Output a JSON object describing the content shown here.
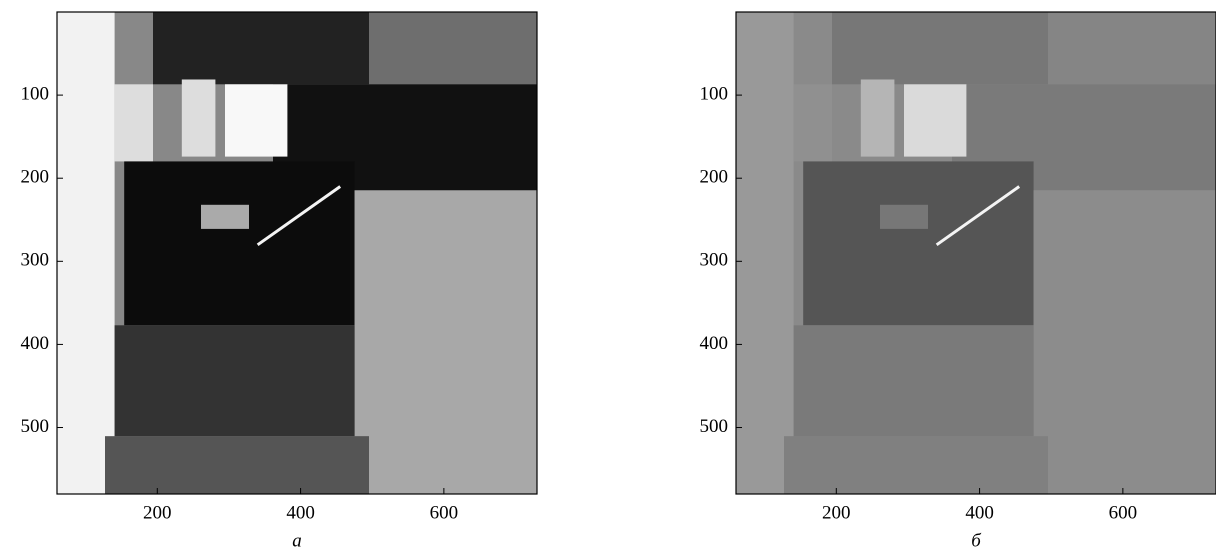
{
  "chart_data": [
    {
      "type": "image",
      "caption": "а",
      "xlim": [
        60,
        730
      ],
      "ylim": [
        0,
        580
      ],
      "y_inverted": true,
      "xticks": [
        200,
        400,
        600
      ],
      "yticks": [
        100,
        200,
        300,
        400,
        500
      ]
    },
    {
      "type": "image",
      "caption": "б",
      "xlim": [
        60,
        730
      ],
      "ylim": [
        0,
        580
      ],
      "y_inverted": true,
      "xticks": [
        200,
        400,
        600
      ],
      "yticks": [
        100,
        200,
        300,
        400,
        500
      ]
    }
  ]
}
